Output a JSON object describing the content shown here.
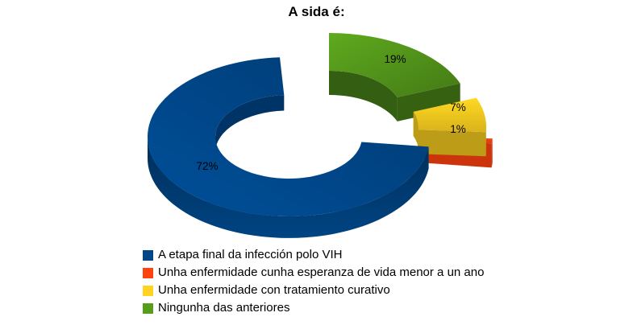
{
  "chart_data": {
    "type": "pie",
    "subtype": "3d-exploded-donut",
    "title": "A sida é:",
    "categories": [
      "A etapa final da infección polo VIH",
      "Unha enfermidade cunha esperanza de vida menor a un ano",
      "Unha enfermidade con tratamiento curativo",
      "Ningunha das anteriores"
    ],
    "values": [
      72,
      1,
      7,
      19
    ],
    "labels": [
      "72%",
      "1%",
      "7%",
      "19%"
    ],
    "colors": [
      "#004586",
      "#FF420E",
      "#FFD320",
      "#579D1C"
    ],
    "label_color": "#000000",
    "background": "#FFFFFF",
    "legend_position": "bottom",
    "grid": false
  }
}
